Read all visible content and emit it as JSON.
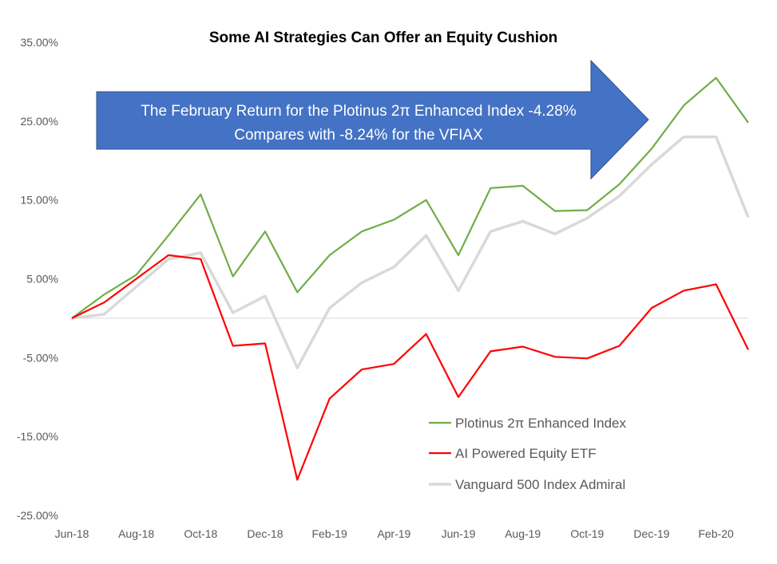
{
  "chart_data": {
    "type": "line",
    "title": "Some AI Strategies Can Offer an Equity Cushion",
    "annotation": {
      "line1": "The February Return for the Plotinus 2π Enhanced Index -4.28%",
      "line2": "Compares with -8.24% for the VFIAX",
      "color": "#4472C4"
    },
    "x": [
      "Jun-18",
      "Jul-18",
      "Aug-18",
      "Sep-18",
      "Oct-18",
      "Nov-18",
      "Dec-18",
      "Jan-19",
      "Feb-19",
      "Mar-19",
      "Apr-19",
      "May-19",
      "Jun-19",
      "Jul-19",
      "Aug-19",
      "Sep-19",
      "Oct-19",
      "Nov-19",
      "Dec-19",
      "Jan-20",
      "Feb-20",
      "Mar-20"
    ],
    "x_tick_labels": [
      "Jun-18",
      "Aug-18",
      "Oct-18",
      "Dec-18",
      "Feb-19",
      "Apr-19",
      "Jun-19",
      "Aug-19",
      "Oct-19",
      "Dec-19",
      "Feb-20"
    ],
    "y_tick_labels": [
      "35.00%",
      "25.00%",
      "15.00%",
      "5.00%",
      "-5.00%",
      "-15.00%",
      "-25.00%"
    ],
    "ylim": [
      -25,
      35
    ],
    "series": [
      {
        "name": "Plotinus 2π Enhanced Index",
        "color": "#70AD47",
        "values": [
          0,
          3,
          5.5,
          10.5,
          15.7,
          5.3,
          11,
          3.3,
          8,
          11,
          12.5,
          15,
          8,
          16.5,
          16.8,
          13.6,
          13.7,
          17,
          21.5,
          27,
          30.5,
          24.8
        ]
      },
      {
        "name": "AI Powered Equity ETF",
        "color": "#FF0000",
        "values": [
          0,
          2,
          5,
          8,
          7.5,
          -3.5,
          -3.2,
          -20.5,
          -10.2,
          -6.5,
          -5.8,
          -2,
          -10,
          -4.2,
          -3.6,
          -4.9,
          -5.1,
          -3.5,
          1.3,
          3.5,
          4.3,
          -4
        ]
      },
      {
        "name": "Vanguard 500 Index Admiral",
        "color": "#D9D9D9",
        "values": [
          0,
          0.5,
          4,
          7.5,
          8.3,
          0.7,
          2.8,
          -6.3,
          1.3,
          4.5,
          6.5,
          10.5,
          3.5,
          11,
          12.3,
          10.7,
          12.7,
          15.5,
          19.5,
          23,
          23,
          12.8
        ]
      }
    ]
  }
}
